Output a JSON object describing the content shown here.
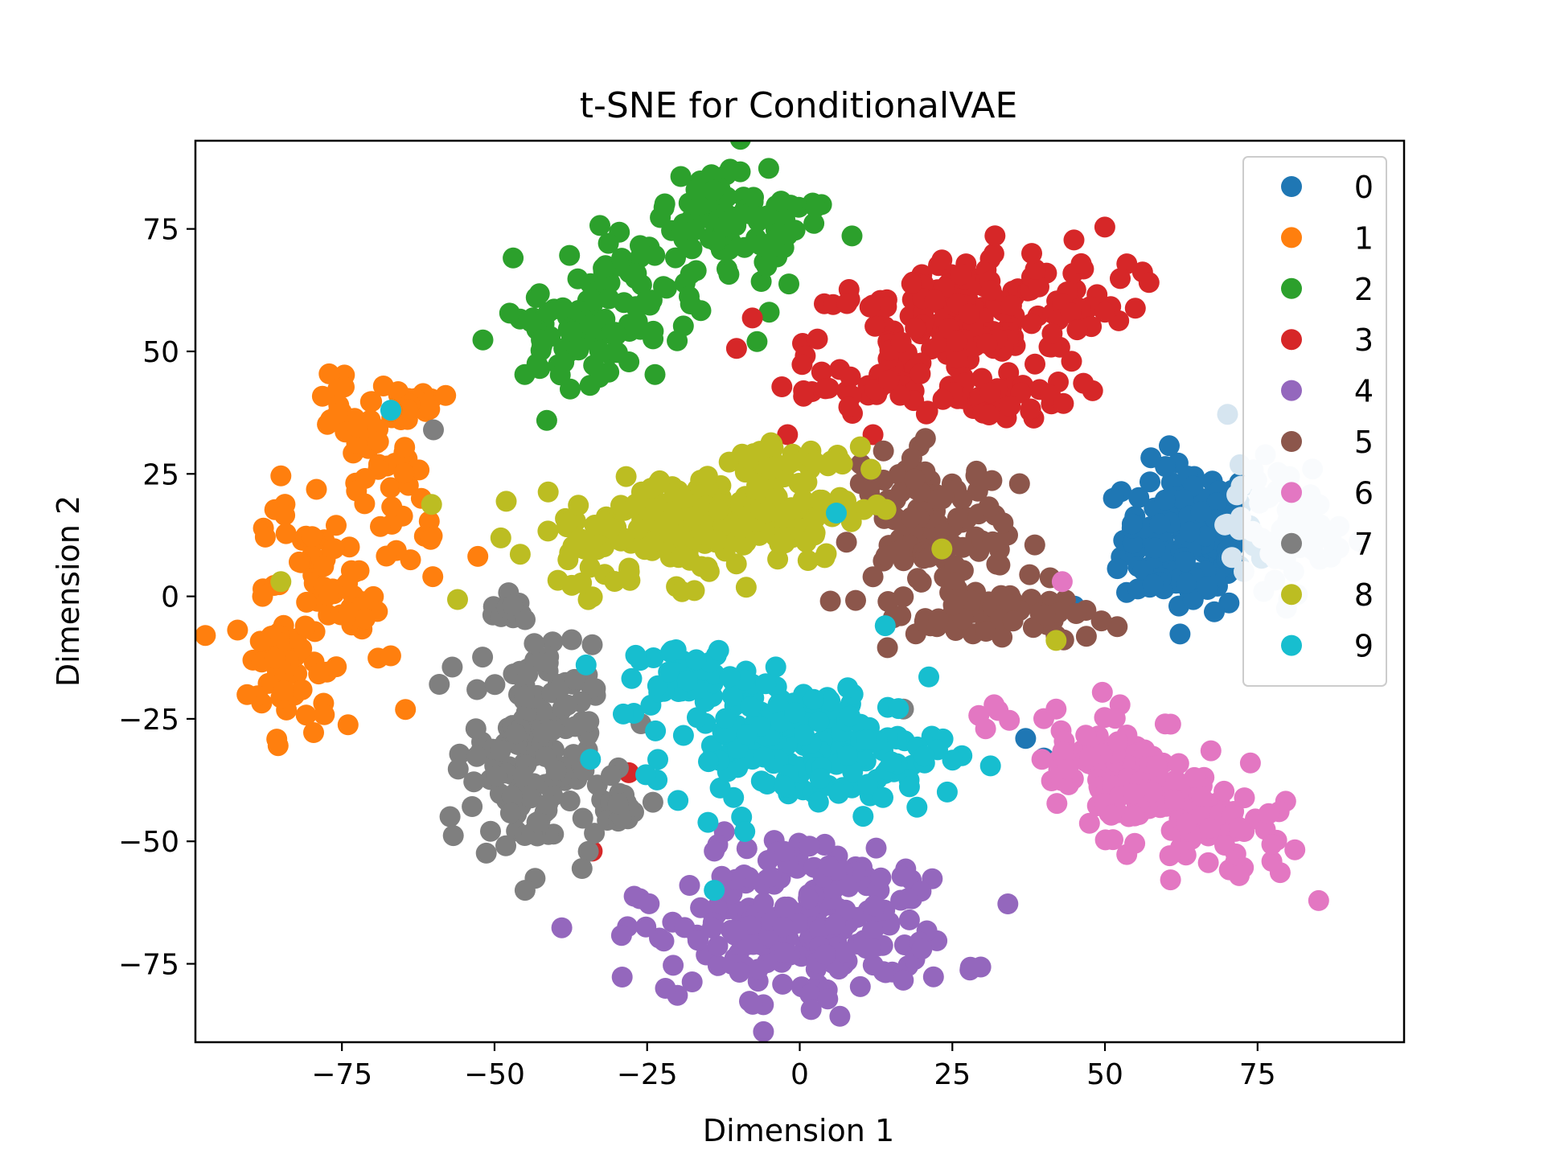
{
  "chart_data": {
    "type": "scatter",
    "title": "t-SNE for ConditionalVAE",
    "xlabel": "Dimension 1",
    "ylabel": "Dimension 2",
    "xlim": [
      -99,
      99
    ],
    "ylim": [
      -91,
      93
    ],
    "xticks": [
      -75,
      -50,
      -25,
      0,
      25,
      50,
      75
    ],
    "yticks": [
      -75,
      -50,
      -25,
      0,
      25,
      50,
      75
    ],
    "xtick_labels": [
      "−75",
      "−50",
      "−25",
      "0",
      "25",
      "50",
      "75"
    ],
    "ytick_labels": [
      "−75",
      "−50",
      "−25",
      "0",
      "25",
      "50",
      "75"
    ],
    "grid": false,
    "legend_position": "upper right",
    "series": [
      {
        "name": "0",
        "color": "#1f77b4",
        "clusters": [
          {
            "cx": 64,
            "cy": 12,
            "sx": 5.5,
            "sy": 7.5,
            "rot": 0,
            "n": 170
          }
        ],
        "points": [
          [
            37,
            -29
          ],
          [
            45,
            -2
          ],
          [
            40,
            -33
          ]
        ]
      },
      {
        "name": "1",
        "color": "#ff7f0e",
        "clusters": [
          {
            "cx": -85,
            "cy": -14,
            "sx": 3.2,
            "sy": 7,
            "rot": 10,
            "n": 60
          },
          {
            "cx": -77,
            "cy": 5,
            "sx": 3.2,
            "sy": 9,
            "rot": 30,
            "n": 55
          },
          {
            "cx": -69,
            "cy": 26,
            "sx": 3.2,
            "sy": 9,
            "rot": 25,
            "n": 55
          },
          {
            "cx": -64,
            "cy": 40,
            "sx": 3,
            "sy": 3.5,
            "rot": 0,
            "n": 25
          }
        ],
        "points": [
          [
            -82,
            7
          ],
          [
            -88,
            0
          ],
          [
            -58,
            41
          ],
          [
            -62,
            20
          ]
        ]
      },
      {
        "name": "2",
        "color": "#2ca02c",
        "clusters": [
          {
            "cx": -11,
            "cy": 75,
            "sx": 8,
            "sy": 5.5,
            "rot": -15,
            "n": 90
          },
          {
            "cx": -27,
            "cy": 63,
            "sx": 7,
            "sy": 6,
            "rot": 0,
            "n": 60
          },
          {
            "cx": -38,
            "cy": 52,
            "sx": 6,
            "sy": 4,
            "rot": 0,
            "n": 50
          }
        ],
        "points": [
          [
            -7,
            52
          ],
          [
            -5,
            58
          ],
          [
            -17,
            83
          ],
          [
            -44,
            56
          ]
        ]
      },
      {
        "name": "3",
        "color": "#d62728",
        "clusters": [
          {
            "cx": 27,
            "cy": 57,
            "sx": 13,
            "sy": 6.5,
            "rot": 12,
            "n": 200
          },
          {
            "cx": 22,
            "cy": 41,
            "sx": 11,
            "sy": 2.5,
            "rot": 0,
            "n": 60
          }
        ],
        "points": [
          [
            12,
            33
          ],
          [
            -2,
            33
          ],
          [
            -28,
            -36
          ],
          [
            -34,
            -52
          ],
          [
            50,
            58
          ],
          [
            38,
            70
          ]
        ]
      },
      {
        "name": "4",
        "color": "#9467bd",
        "clusters": [
          {
            "cx": 0,
            "cy": -70,
            "sx": 13,
            "sy": 6,
            "rot": 0,
            "n": 180
          },
          {
            "cx": 2,
            "cy": -57,
            "sx": 9,
            "sy": 4,
            "rot": 0,
            "n": 50
          }
        ],
        "points": [
          [
            -14,
            -52
          ],
          [
            20,
            -72
          ],
          [
            -22,
            -80
          ]
        ]
      },
      {
        "name": "5",
        "color": "#8c564b",
        "clusters": [
          {
            "cx": 22,
            "cy": 13,
            "sx": 6,
            "sy": 8,
            "rot": 0,
            "n": 120
          },
          {
            "cx": 33,
            "cy": -4,
            "sx": 7,
            "sy": 3,
            "rot": 0,
            "n": 50
          }
        ],
        "points": [
          [
            36,
            23
          ],
          [
            10,
            27
          ],
          [
            42,
            -8
          ],
          [
            12,
            4
          ]
        ]
      },
      {
        "name": "6",
        "color": "#e377c2",
        "clusters": [
          {
            "cx": 57,
            "cy": -40,
            "sx": 12,
            "sy": 5,
            "rot": -35,
            "n": 190
          }
        ],
        "points": [
          [
            43,
            3
          ],
          [
            42,
            -23
          ],
          [
            72,
            -57
          ]
        ]
      },
      {
        "name": "7",
        "color": "#7f7f7f",
        "clusters": [
          {
            "cx": -44,
            "cy": -32,
            "sx": 5,
            "sy": 11,
            "rot": 0,
            "n": 160
          },
          {
            "cx": -48,
            "cy": -2,
            "sx": 2,
            "sy": 2,
            "rot": 0,
            "n": 12
          },
          {
            "cx": -30,
            "cy": -44,
            "sx": 3,
            "sy": 2,
            "rot": 20,
            "n": 20
          }
        ],
        "points": [
          [
            -60,
            34
          ],
          [
            -26,
            -26
          ],
          [
            17,
            -23
          ],
          [
            -45,
            -60
          ]
        ]
      },
      {
        "name": "8",
        "color": "#bcbd22",
        "clusters": [
          {
            "cx": -15,
            "cy": 15,
            "sx": 13,
            "sy": 5.5,
            "rot": 10,
            "n": 220
          },
          {
            "cx": -2,
            "cy": 28,
            "sx": 5,
            "sy": 2.5,
            "rot": 0,
            "n": 40
          }
        ],
        "points": [
          [
            -85,
            3
          ],
          [
            42,
            -9
          ],
          [
            7,
            27
          ],
          [
            -38,
            15
          ]
        ]
      },
      {
        "name": "9",
        "color": "#17becf",
        "clusters": [
          {
            "cx": 0,
            "cy": -30,
            "sx": 12,
            "sy": 6,
            "rot": -8,
            "n": 190
          },
          {
            "cx": -18,
            "cy": -16,
            "sx": 5,
            "sy": 3,
            "rot": 0,
            "n": 40
          }
        ],
        "points": [
          [
            -67,
            38
          ],
          [
            -35,
            -14
          ],
          [
            6,
            17
          ],
          [
            14,
            -6
          ],
          [
            -14,
            -60
          ],
          [
            -9,
            -48
          ]
        ]
      },
      {
        "name": "",
        "color": "#d6e5f0",
        "clusters": [
          {
            "cx": 79,
            "cy": 14,
            "sx": 4.5,
            "sy": 6.5,
            "rot": 0,
            "n": 70
          }
        ],
        "points": [
          [
            76,
            1
          ],
          [
            87,
            8
          ],
          [
            84,
            26
          ]
        ]
      }
    ]
  }
}
